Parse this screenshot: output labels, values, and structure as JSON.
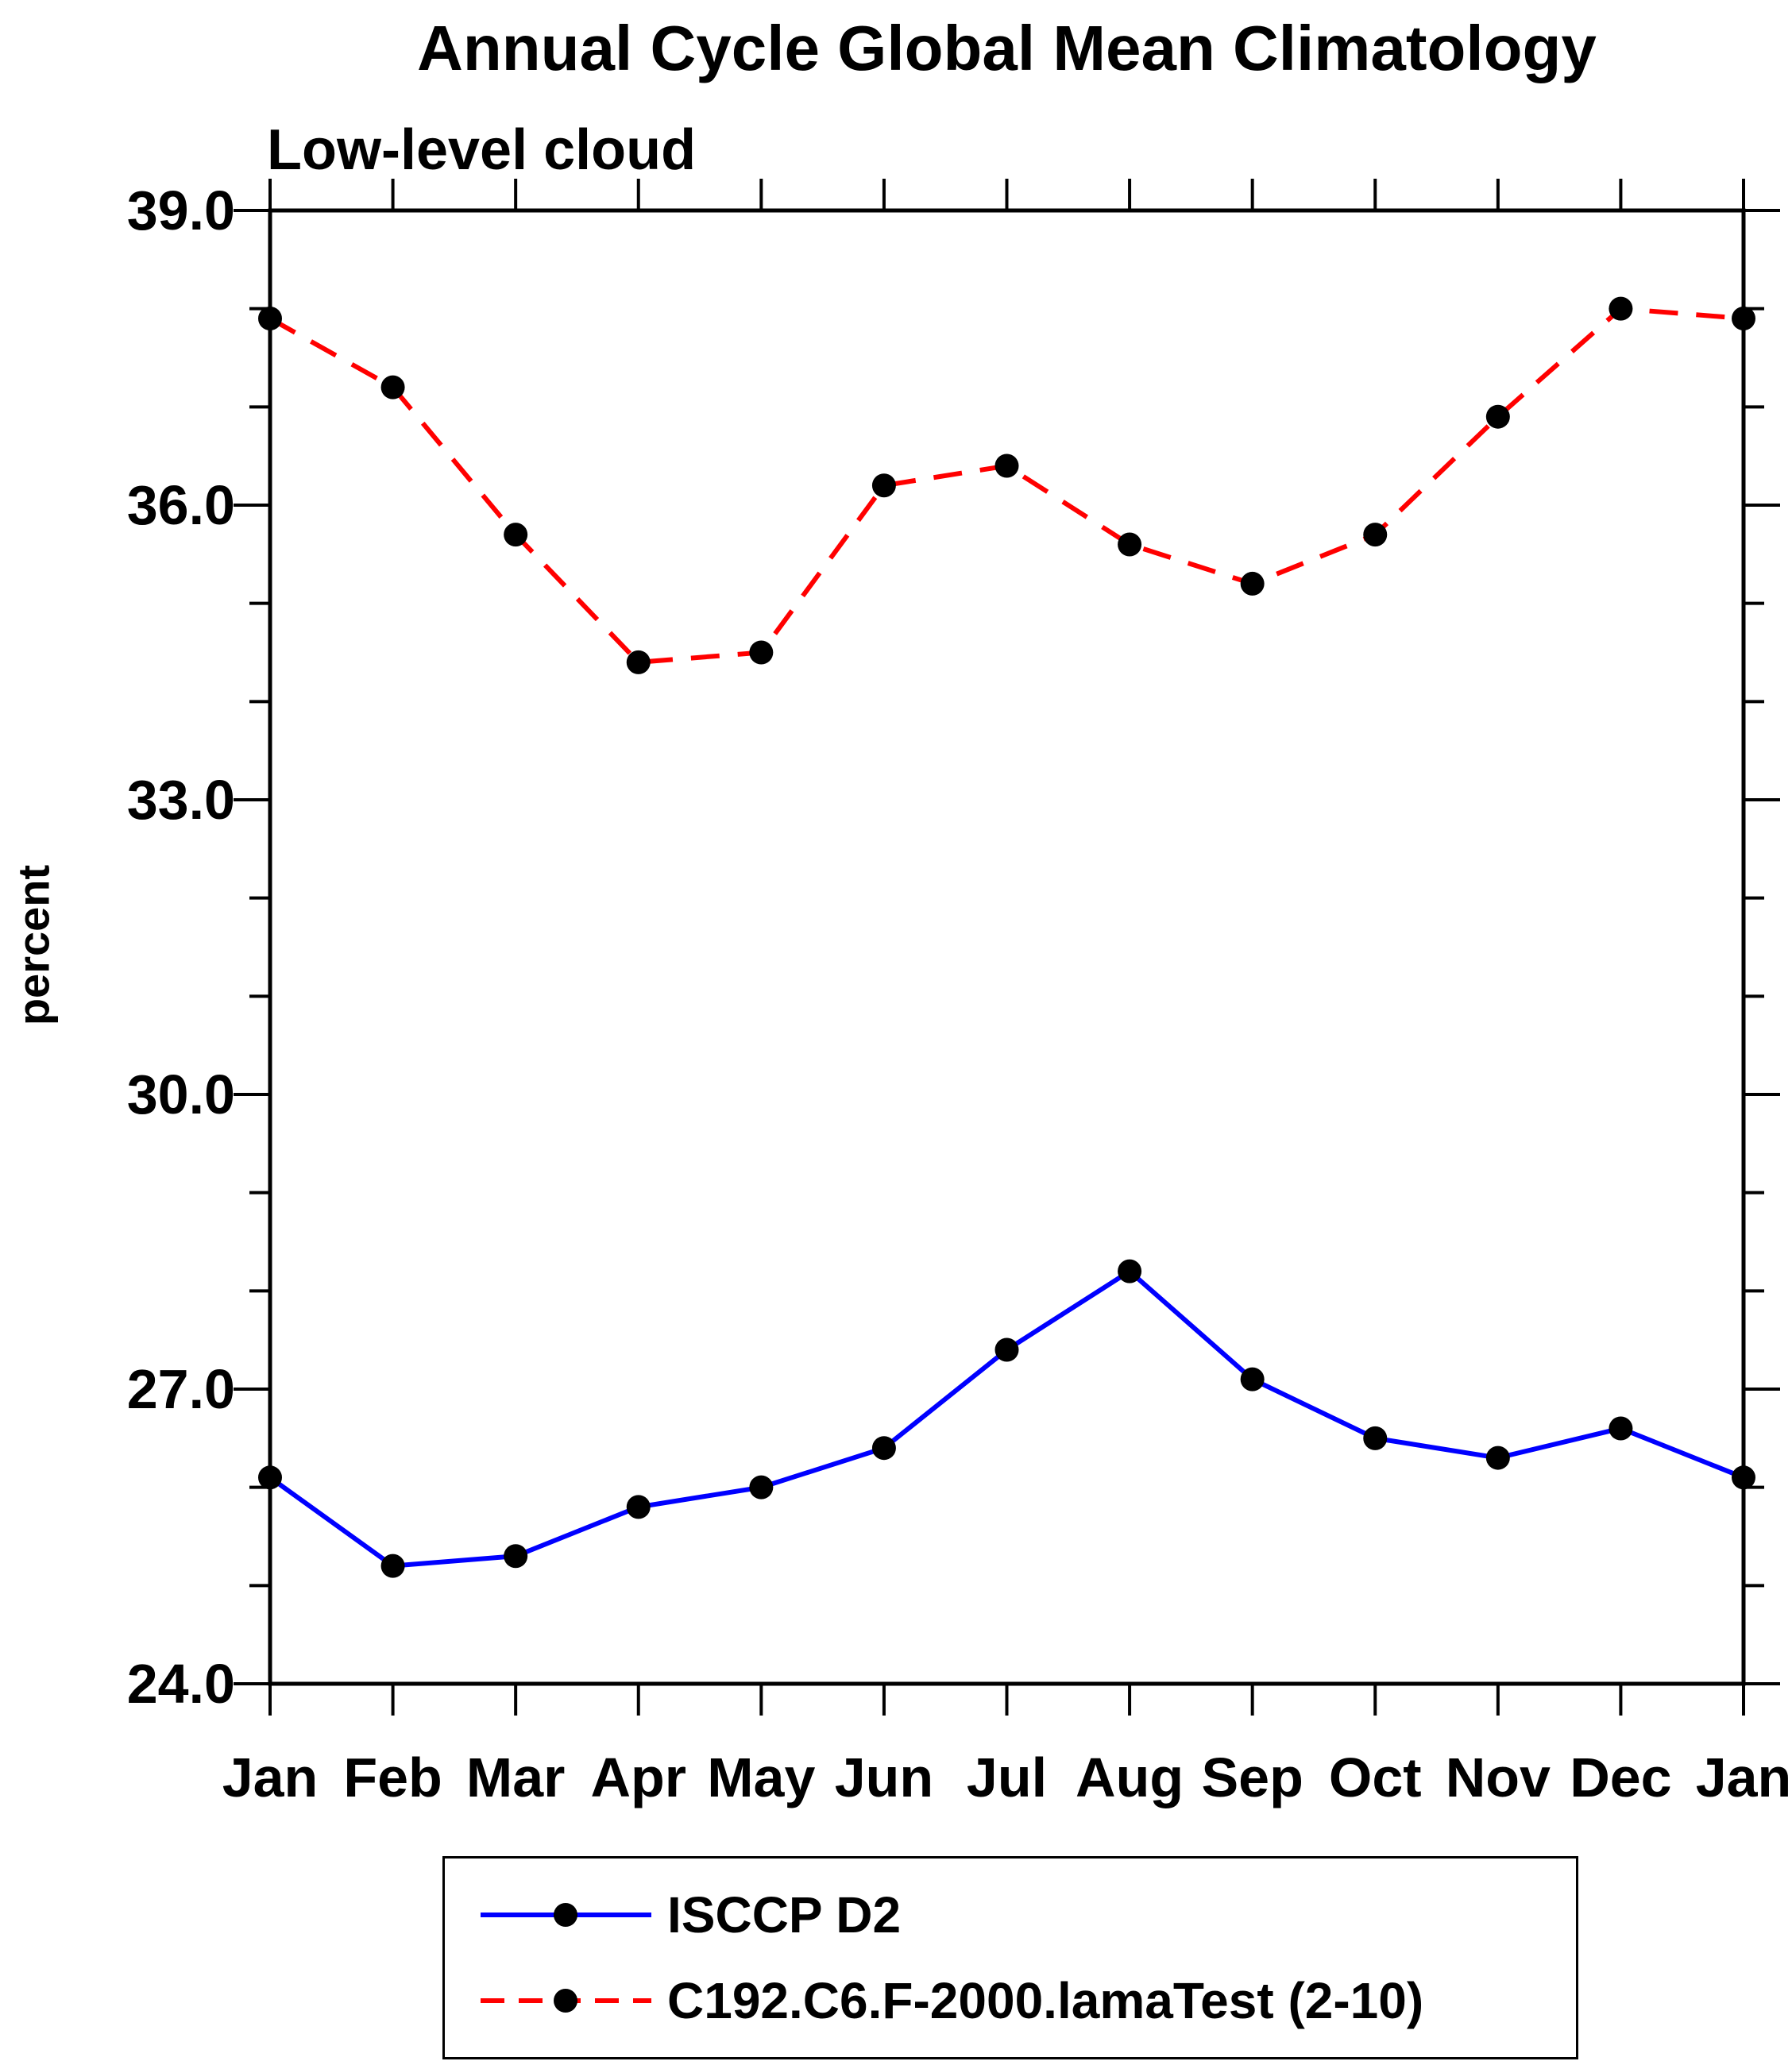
{
  "page": {
    "background": "#ffffff",
    "axis_color": "#000000"
  },
  "chart_data": {
    "type": "line",
    "title": "Annual Cycle Global Mean Climatology",
    "subtitle": "Low-level cloud",
    "ylabel": "percent",
    "x_categories": [
      "Jan",
      "Feb",
      "Mar",
      "Apr",
      "May",
      "Jun",
      "Jul",
      "Aug",
      "Sep",
      "Oct",
      "Nov",
      "Dec",
      "Jan"
    ],
    "ylim": [
      24.0,
      39.0
    ],
    "yticks": [
      24.0,
      27.0,
      30.0,
      33.0,
      36.0,
      39.0
    ],
    "ytick_labels": [
      "24.0",
      "27.0",
      "30.0",
      "33.0",
      "36.0",
      "39.0"
    ],
    "grid": false,
    "legend_position": "bottom",
    "marker_color": "#000000",
    "series": [
      {
        "name": "ISCCP D2",
        "color": "#0000ff",
        "line_style": "solid",
        "marker": "filled-circle",
        "marker_color": "#000000",
        "values": [
          26.1,
          25.2,
          25.3,
          25.8,
          26.0,
          26.4,
          27.4,
          28.2,
          27.1,
          26.5,
          26.3,
          26.6,
          26.1
        ]
      },
      {
        "name": "C192.C6.F-2000.lamaTest (2-10)",
        "color": "#ff0000",
        "line_style": "dashed",
        "marker": "filled-circle",
        "marker_color": "#000000",
        "values": [
          37.9,
          37.2,
          35.7,
          34.4,
          34.5,
          36.2,
          36.4,
          35.6,
          35.2,
          35.7,
          36.9,
          38.0,
          37.9
        ]
      }
    ]
  }
}
